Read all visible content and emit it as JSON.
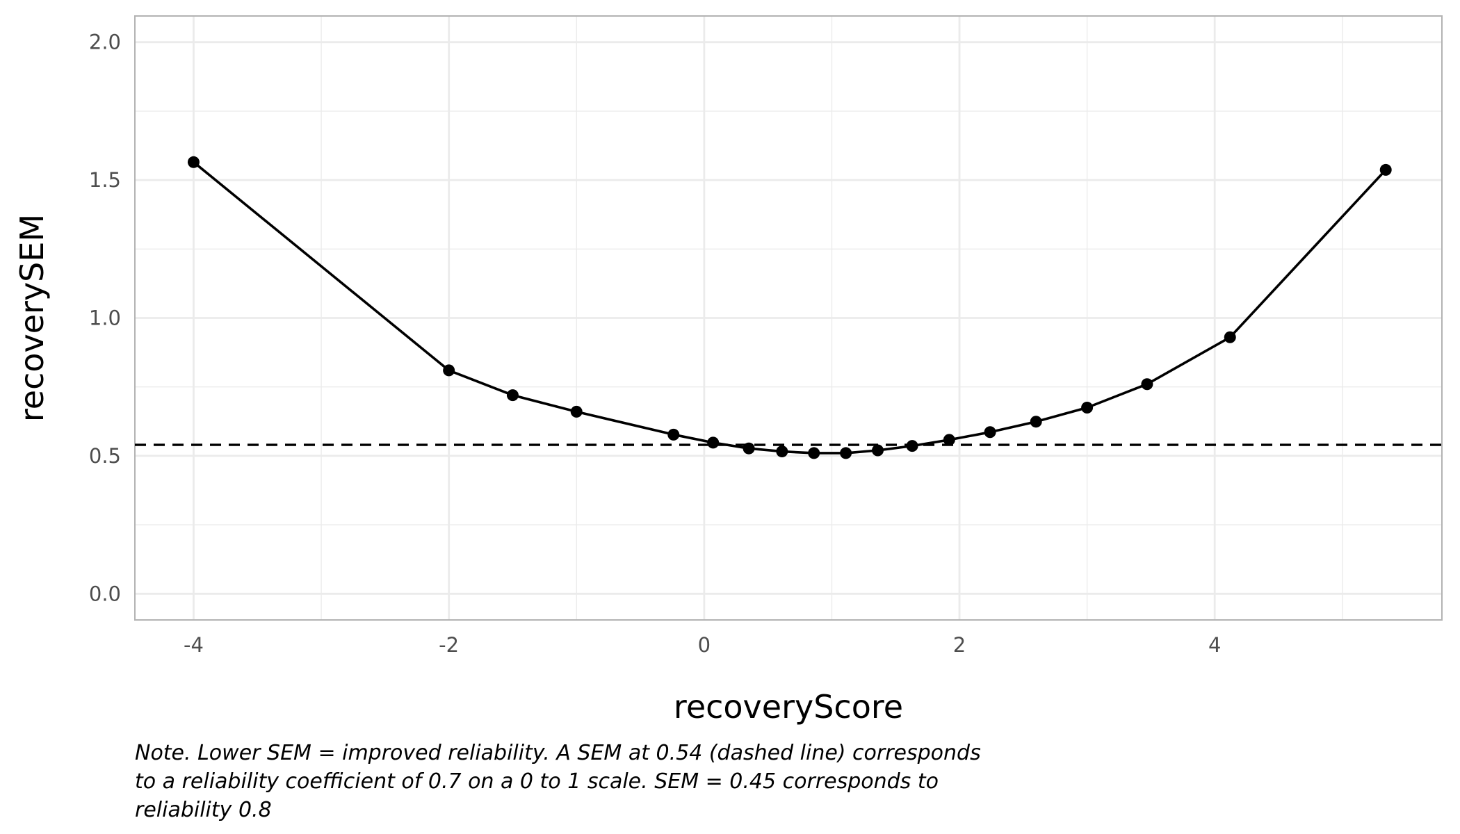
{
  "chart_data": {
    "type": "line",
    "title": "",
    "xlabel": "recoveryScore",
    "ylabel": "recoverySEM",
    "xlim": [
      -4.46,
      5.78
    ],
    "ylim": [
      -0.095,
      2.095
    ],
    "x_ticks": [
      -4,
      -2,
      0,
      2,
      4
    ],
    "x_tick_labels": [
      "-4",
      "-2",
      "0",
      "2",
      "4"
    ],
    "y_ticks": [
      0.0,
      0.5,
      1.0,
      1.5,
      2.0
    ],
    "y_tick_labels": [
      "0.0",
      "0.5",
      "1.0",
      "1.5",
      "2.0"
    ],
    "grid": true,
    "series": [
      {
        "x": [
          -4.0,
          -2.0,
          -1.5,
          -1.0,
          -0.24,
          0.07,
          0.35,
          0.61,
          0.86,
          1.11,
          1.36,
          1.63,
          1.92,
          2.24,
          2.6,
          3.0,
          3.47,
          4.12,
          5.34
        ],
        "y": [
          1.565,
          0.81,
          0.72,
          0.66,
          0.577,
          0.548,
          0.527,
          0.516,
          0.51,
          0.51,
          0.52,
          0.536,
          0.558,
          0.586,
          0.624,
          0.675,
          0.76,
          0.93,
          1.537
        ],
        "marker": "circle"
      }
    ],
    "reference_line": {
      "y": 0.54,
      "style": "dashed"
    },
    "colors": {
      "line": "#000000",
      "points": "#000000",
      "grid": "#ebebeb",
      "panel_border": "#b3b3b3",
      "tick_text": "#4d4d4d"
    }
  },
  "note": {
    "line1": "Note. Lower SEM = improved reliability. A SEM at 0.54 (dashed line) corresponds",
    "line2": "to a reliability coefficient of 0.7 on a 0 to 1 scale. SEM = 0.45 corresponds to",
    "line3": "reliability 0.8"
  }
}
